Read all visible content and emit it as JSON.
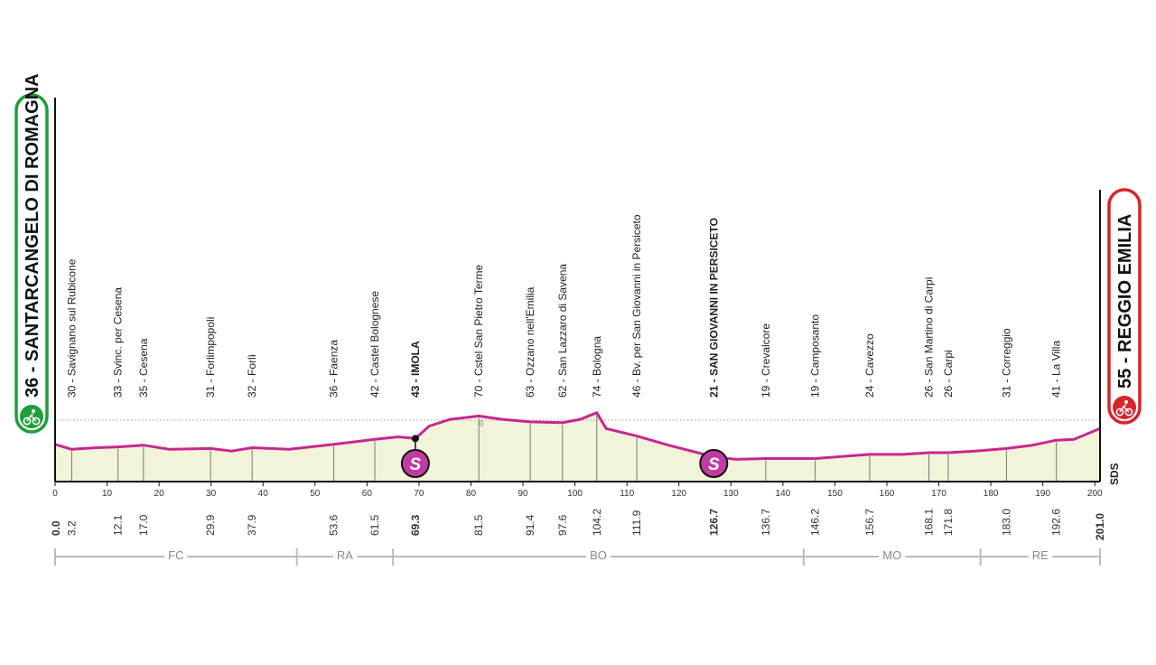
{
  "chart_data": {
    "type": "area",
    "title": "",
    "xlabel": "",
    "ylabel": "",
    "xlim": [
      0,
      200
    ],
    "start": {
      "label": "36 - SANTARCANGELO DI ROMAGNA",
      "altitude": 36,
      "km": "0.0",
      "icon": "bicycle-icon",
      "color": "#1f9e3a"
    },
    "finish": {
      "label": "55 - REGGIO EMILIA",
      "altitude": 55,
      "km": "201.0",
      "icon": "bicycle-icon",
      "color": "#d8232a"
    },
    "x_ticks": [
      0,
      10,
      20,
      30,
      40,
      50,
      60,
      70,
      80,
      90,
      100,
      110,
      120,
      130,
      140,
      150,
      160,
      170,
      180,
      190,
      200
    ],
    "waypoints": [
      {
        "label": "30 - Savignano sul Rubicone",
        "km": 3.2,
        "km_label": "3.2",
        "alt": 30
      },
      {
        "label": "33 - Svinc. per Cesena",
        "km": 12.1,
        "km_label": "12.1",
        "alt": 33
      },
      {
        "label": "35 - Cesena",
        "km": 17.0,
        "km_label": "17.0",
        "alt": 35
      },
      {
        "label": "31 - Forlimpopoli",
        "km": 29.9,
        "km_label": "29.9",
        "alt": 31
      },
      {
        "label": "32 - Forlì",
        "km": 37.9,
        "km_label": "37.9",
        "alt": 32
      },
      {
        "label": "36 - Faenza",
        "km": 53.6,
        "km_label": "53.6",
        "alt": 36
      },
      {
        "label": "42 - Castel Bolognese",
        "km": 61.5,
        "km_label": "61.5",
        "alt": 42
      },
      {
        "label": "43 - IMOLA",
        "km": 69.3,
        "km_label": "69.3",
        "alt": 43,
        "bold": true,
        "sprint": true
      },
      {
        "label": "70 - Cstel San Pietro Terme",
        "km": 81.5,
        "km_label": "81.5",
        "alt": 70
      },
      {
        "label": "63 - Ozzano nell'Emilia",
        "km": 91.4,
        "km_label": "91.4",
        "alt": 63
      },
      {
        "label": "62 - San Lazzaro di Savena",
        "km": 97.6,
        "km_label": "97.6",
        "alt": 62
      },
      {
        "label": "74 - Bologna",
        "km": 104.2,
        "km_label": "104.2",
        "alt": 74
      },
      {
        "label": "46 - Bv. per San Giovanni in Persiceto",
        "km": 111.9,
        "km_label": "111.9",
        "alt": 46
      },
      {
        "label": "21 - SAN GIOVANNI IN PERSICETO",
        "km": 126.7,
        "km_label": "126.7",
        "alt": 21,
        "bold": true,
        "sprint": true
      },
      {
        "label": "19 - Crevalcore",
        "km": 136.7,
        "km_label": "136.7",
        "alt": 19
      },
      {
        "label": "19 - Camposanto",
        "km": 146.2,
        "km_label": "146.2",
        "alt": 19
      },
      {
        "label": "24 - Cavezzo",
        "km": 156.7,
        "km_label": "156.7",
        "alt": 24
      },
      {
        "label": "26 - San Martino di Carpi",
        "km": 168.1,
        "km_label": "168.1",
        "alt": 26
      },
      {
        "label": "26 - Carpi",
        "km": 171.8,
        "km_label": "171.8",
        "alt": 26
      },
      {
        "label": "31 - Correggio",
        "km": 183.0,
        "km_label": "183.0",
        "alt": 31
      },
      {
        "label": "41 - La Villa",
        "km": 192.6,
        "km_label": "192.6",
        "alt": 41
      }
    ],
    "profile": [
      [
        0,
        36
      ],
      [
        3.2,
        30
      ],
      [
        8,
        32
      ],
      [
        12.1,
        33
      ],
      [
        17.0,
        35
      ],
      [
        22,
        30
      ],
      [
        29.9,
        31
      ],
      [
        34,
        28
      ],
      [
        37.9,
        32
      ],
      [
        45,
        30
      ],
      [
        53.6,
        36
      ],
      [
        61.5,
        42
      ],
      [
        66,
        45
      ],
      [
        69.3,
        43
      ],
      [
        72,
        58
      ],
      [
        76,
        66
      ],
      [
        81.5,
        70
      ],
      [
        86,
        66
      ],
      [
        91.4,
        63
      ],
      [
        97.6,
        62
      ],
      [
        101,
        66
      ],
      [
        104.2,
        74
      ],
      [
        106,
        55
      ],
      [
        111.9,
        46
      ],
      [
        118,
        35
      ],
      [
        126.7,
        21
      ],
      [
        131,
        18
      ],
      [
        136.7,
        19
      ],
      [
        146.2,
        19
      ],
      [
        156.7,
        24
      ],
      [
        163,
        24
      ],
      [
        168.1,
        26
      ],
      [
        171.8,
        26
      ],
      [
        177,
        28
      ],
      [
        183.0,
        31
      ],
      [
        188,
        35
      ],
      [
        192.6,
        41
      ],
      [
        196,
        42
      ],
      [
        201,
        55
      ]
    ],
    "sprint_symbol": "S",
    "sprint_color": "#c23aa4",
    "line_color": "#c8278f",
    "fill_color": "#f1f4d9",
    "provinces": [
      {
        "code": "FC",
        "from": 0,
        "to": 46.5
      },
      {
        "code": "RA",
        "from": 46.5,
        "to": 65
      },
      {
        "code": "BO",
        "from": 65,
        "to": 144
      },
      {
        "code": "MO",
        "from": 144,
        "to": 178
      },
      {
        "code": "RE",
        "from": 178,
        "to": 201
      }
    ],
    "marker_text": "0",
    "brand": "SDS"
  }
}
